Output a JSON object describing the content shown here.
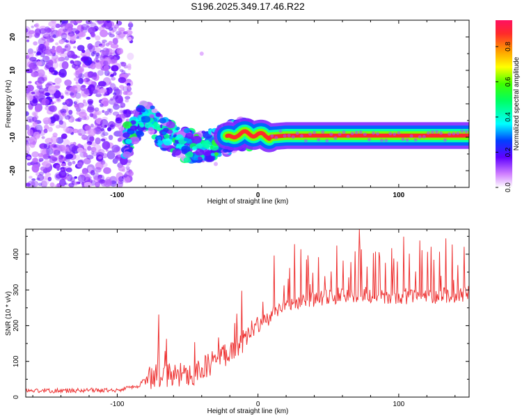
{
  "title": "S196.2025.349.17.46.R22",
  "chart_data": [
    {
      "type": "heatmap",
      "xlabel": "Height of straight line (km)",
      "ylabel": "Frequency (Hz)",
      "xlim": [
        -165,
        150
      ],
      "ylim": [
        -25,
        25
      ],
      "x_ticks": [
        "-100",
        "0",
        "100"
      ],
      "x_tick_values": [
        -100,
        0,
        100
      ],
      "y_ticks": [
        "20",
        "10",
        "0",
        "-10",
        "-20"
      ],
      "y_tick_values": [
        20,
        10,
        0,
        -10,
        -20
      ],
      "colorbar": {
        "label": "Normalized spectral amplitude",
        "range": [
          0,
          0.95
        ],
        "ticks": [
          "0.0",
          "0.2",
          "0.4",
          "0.6",
          "0.8"
        ],
        "tick_values": [
          0.0,
          0.2,
          0.4,
          0.6,
          0.8
        ]
      },
      "ridge": {
        "description_points": [
          {
            "x": -90,
            "y": -9
          },
          {
            "x": -80,
            "y": -3
          },
          {
            "x": -70,
            "y": -8
          },
          {
            "x": -55,
            "y": -12
          },
          {
            "x": -40,
            "y": -13
          },
          {
            "x": -25,
            "y": -11
          },
          {
            "x": -15,
            "y": -9
          },
          {
            "x": 0,
            "y": -9
          },
          {
            "x": 5,
            "y": -10
          },
          {
            "x": 20,
            "y": -9.5
          },
          {
            "x": 150,
            "y": -9.5
          }
        ],
        "peak_amplitude": 0.95
      }
    },
    {
      "type": "line",
      "xlabel": "Height of straight line (km)",
      "ylabel": "SNR (10 * v/v)",
      "xlim": [
        -165,
        150
      ],
      "ylim": [
        0,
        470
      ],
      "x_ticks": [
        "-100",
        "0",
        "100"
      ],
      "x_tick_values": [
        -100,
        0,
        100
      ],
      "y_ticks": [
        "0",
        "100",
        "200",
        "300",
        "400"
      ],
      "y_tick_values": [
        0,
        100,
        200,
        300,
        400
      ],
      "series": [
        {
          "name": "SNR",
          "color": "#ee3333",
          "trend_points": [
            [
              -165,
              18
            ],
            [
              -130,
              18
            ],
            [
              -100,
              20
            ],
            [
              -85,
              30
            ],
            [
              -80,
              55
            ],
            [
              -65,
              60
            ],
            [
              -50,
              65
            ],
            [
              -40,
              75
            ],
            [
              -30,
              105
            ],
            [
              -20,
              130
            ],
            [
              -10,
              160
            ],
            [
              0,
              195
            ],
            [
              10,
              230
            ],
            [
              20,
              255
            ],
            [
              30,
              268
            ],
            [
              40,
              275
            ],
            [
              60,
              285
            ],
            [
              80,
              285
            ],
            [
              100,
              285
            ],
            [
              120,
              280
            ],
            [
              140,
              285
            ],
            [
              150,
              290
            ]
          ],
          "max_value": 470,
          "max_at_x": 72
        }
      ]
    }
  ]
}
